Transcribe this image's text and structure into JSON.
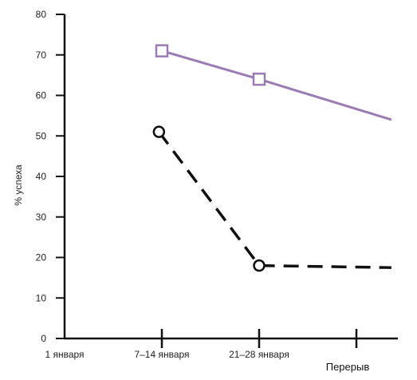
{
  "chart_data": {
    "type": "line",
    "title": "",
    "xlabel": "",
    "ylabel": "% успеха",
    "ylim": [
      0,
      80
    ],
    "yticks": [
      0,
      10,
      20,
      30,
      40,
      50,
      60,
      70,
      80
    ],
    "categories": [
      "1 января",
      "7–14 января",
      "21–28 января",
      ""
    ],
    "extra_x_label": "Перерыв",
    "grid": false,
    "series": [
      {
        "style": "solid",
        "marker": "square",
        "color": "#9b7bb3",
        "points": [
          {
            "x": 1,
            "y": 71,
            "marker": true
          },
          {
            "x": 2,
            "y": 64,
            "marker": true
          },
          {
            "x": 3.36,
            "y": 54,
            "marker": false
          }
        ]
      },
      {
        "style": "dashed",
        "marker": "circle",
        "color": "#111111",
        "points": [
          {
            "x": 0.97,
            "y": 51,
            "marker": true
          },
          {
            "x": 2,
            "y": 18,
            "marker": true
          },
          {
            "x": 3.36,
            "y": 17.5,
            "marker": false
          }
        ]
      }
    ]
  }
}
